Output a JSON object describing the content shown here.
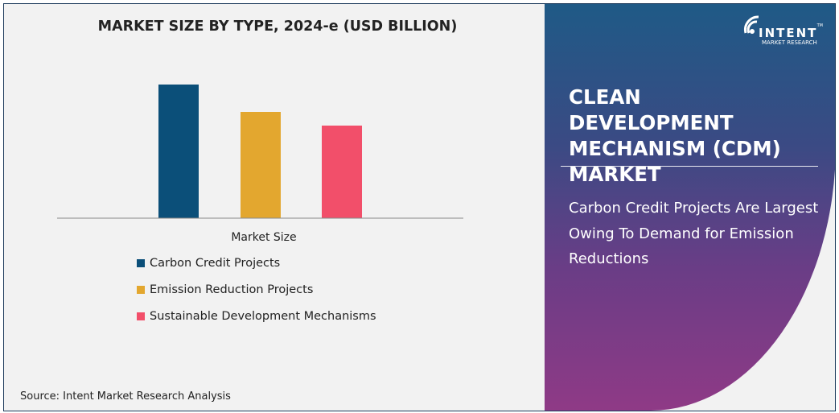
{
  "chart_data": {
    "type": "bar",
    "title": "MARKET SIZE BY TYPE, 2024-e (USD BILLION)",
    "xlabel": "Market Size",
    "ylabel": "",
    "categories": [
      "Market Size"
    ],
    "series": [
      {
        "name": "Carbon Credit Projects",
        "values": [
          166
        ],
        "color": "#0b4f79"
      },
      {
        "name": "Emission Reduction Projects",
        "values": [
          132
        ],
        "color": "#e3a72f"
      },
      {
        "name": "Sustainable Development Mechanisms",
        "values": [
          115
        ],
        "color": "#f24f6a"
      }
    ],
    "ylim": [
      0,
      180
    ],
    "grid": false,
    "legend_placement": "bottom-left"
  },
  "source": "Source: Intent Market Research Analysis",
  "panel": {
    "title": "CLEAN DEVELOPMENT MECHANISM (CDM) MARKET",
    "subtitle": "Carbon Credit Projects Are Largest Owing To Demand for Emission Reductions",
    "logo": {
      "name": "INTENT",
      "tagline": "MARKET RESEARCH",
      "tm": "TM"
    }
  }
}
